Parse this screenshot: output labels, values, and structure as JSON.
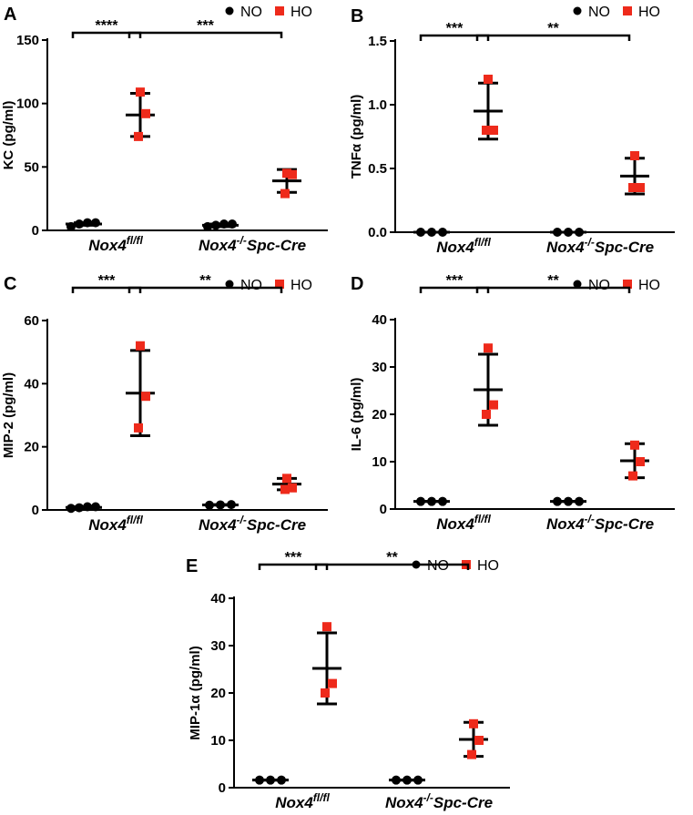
{
  "legend": {
    "no_label": "NO",
    "ho_label": "HO",
    "no_color": "#000000",
    "ho_color": "#ee2a1b"
  },
  "categories": [
    "Nox4",
    "Nox4"
  ],
  "category_superscripts": [
    "fl/fl",
    "-/-"
  ],
  "category_suffixes": [
    "",
    "Spc-Cre"
  ],
  "chart_data": [
    {
      "type": "scatter",
      "panel": "A",
      "ylabel": "KC (pg/ml)",
      "ylim": [
        0,
        150
      ],
      "yticks": [
        "0",
        "50",
        "100",
        "150"
      ],
      "ytick_values": [
        0,
        50,
        100,
        150
      ],
      "groups": [
        {
          "name": "NO",
          "category": 0,
          "points": [
            3,
            5,
            6,
            6
          ],
          "mean": 5,
          "sd": 1
        },
        {
          "name": "HO",
          "category": 0,
          "points": [
            109,
            92,
            74
          ],
          "mean": 91,
          "sd": 17
        },
        {
          "name": "NO",
          "category": 1,
          "points": [
            3,
            4,
            5,
            5
          ],
          "mean": 4,
          "sd": 1
        },
        {
          "name": "HO",
          "category": 1,
          "points": [
            45,
            44,
            29
          ],
          "mean": 39,
          "sd": 9
        }
      ],
      "significance": [
        {
          "label": "****",
          "from_group": 0,
          "to_group": 1
        },
        {
          "label": "***",
          "from_group": 1,
          "to_group": 3
        }
      ]
    },
    {
      "type": "scatter",
      "panel": "B",
      "ylabel": "TNFα (pg/ml)",
      "ylim": [
        0,
        1.5
      ],
      "yticks": [
        "0.0",
        "0.5",
        "1.0",
        "1.5"
      ],
      "ytick_values": [
        0,
        0.5,
        1.0,
        1.5
      ],
      "groups": [
        {
          "name": "NO",
          "category": 0,
          "points": [
            0,
            0,
            0
          ],
          "mean": 0,
          "sd": 0
        },
        {
          "name": "HO",
          "category": 0,
          "points": [
            1.2,
            0.8,
            0.8
          ],
          "mean": 0.95,
          "sd": 0.22
        },
        {
          "name": "NO",
          "category": 1,
          "points": [
            0,
            0,
            0
          ],
          "mean": 0,
          "sd": 0
        },
        {
          "name": "HO",
          "category": 1,
          "points": [
            0.6,
            0.35,
            0.35
          ],
          "mean": 0.44,
          "sd": 0.14
        }
      ],
      "significance": [
        {
          "label": "***",
          "from_group": 0,
          "to_group": 1
        },
        {
          "label": "**",
          "from_group": 1,
          "to_group": 3
        }
      ]
    },
    {
      "type": "scatter",
      "panel": "C",
      "ylabel": "MIP-2 (pg/ml)",
      "ylim": [
        0,
        60
      ],
      "yticks": [
        "0",
        "20",
        "40",
        "60"
      ],
      "ytick_values": [
        0,
        20,
        40,
        60
      ],
      "groups": [
        {
          "name": "NO",
          "category": 0,
          "points": [
            0.5,
            0.7,
            1,
            1
          ],
          "mean": 0.8,
          "sd": 0.2
        },
        {
          "name": "HO",
          "category": 0,
          "points": [
            52,
            36,
            26
          ],
          "mean": 37,
          "sd": 13.5
        },
        {
          "name": "NO",
          "category": 1,
          "points": [
            1.5,
            1.6,
            1.7
          ],
          "mean": 1.6,
          "sd": 0.1
        },
        {
          "name": "HO",
          "category": 1,
          "points": [
            10,
            7,
            6.5
          ],
          "mean": 8.2,
          "sd": 1.8
        }
      ],
      "significance": [
        {
          "label": "***",
          "from_group": 0,
          "to_group": 1
        },
        {
          "label": "**",
          "from_group": 1,
          "to_group": 3
        }
      ]
    },
    {
      "type": "scatter",
      "panel": "D",
      "ylabel": "IL-6 (pg/ml)",
      "ylim": [
        0,
        40
      ],
      "yticks": [
        "0",
        "10",
        "20",
        "30",
        "40"
      ],
      "ytick_values": [
        0,
        10,
        20,
        30,
        40
      ],
      "groups": [
        {
          "name": "NO",
          "category": 0,
          "points": [
            1.6,
            1.6,
            1.6
          ],
          "mean": 1.6,
          "sd": 0
        },
        {
          "name": "HO",
          "category": 0,
          "points": [
            34,
            22,
            20
          ],
          "mean": 25.2,
          "sd": 7.5
        },
        {
          "name": "NO",
          "category": 1,
          "points": [
            1.6,
            1.6,
            1.6
          ],
          "mean": 1.6,
          "sd": 0
        },
        {
          "name": "HO",
          "category": 1,
          "points": [
            13.5,
            10,
            7
          ],
          "mean": 10.2,
          "sd": 3.6
        }
      ],
      "significance": [
        {
          "label": "***",
          "from_group": 0,
          "to_group": 1
        },
        {
          "label": "**",
          "from_group": 1,
          "to_group": 3
        }
      ]
    },
    {
      "type": "scatter",
      "panel": "E",
      "ylabel": "MIP-1α (pg/ml)",
      "ylim": [
        0,
        40
      ],
      "yticks": [
        "0",
        "10",
        "20",
        "30",
        "40"
      ],
      "ytick_values": [
        0,
        10,
        20,
        30,
        40
      ],
      "groups": [
        {
          "name": "NO",
          "category": 0,
          "points": [
            1.6,
            1.6,
            1.6
          ],
          "mean": 1.6,
          "sd": 0
        },
        {
          "name": "HO",
          "category": 0,
          "points": [
            34,
            22,
            20
          ],
          "mean": 25.2,
          "sd": 7.5
        },
        {
          "name": "NO",
          "category": 1,
          "points": [
            1.6,
            1.6,
            1.6
          ],
          "mean": 1.6,
          "sd": 0
        },
        {
          "name": "HO",
          "category": 1,
          "points": [
            13.5,
            10,
            7
          ],
          "mean": 10.2,
          "sd": 3.6
        }
      ],
      "significance": [
        {
          "label": "***",
          "from_group": 0,
          "to_group": 1
        },
        {
          "label": "**",
          "from_group": 1,
          "to_group": 3
        }
      ]
    }
  ]
}
